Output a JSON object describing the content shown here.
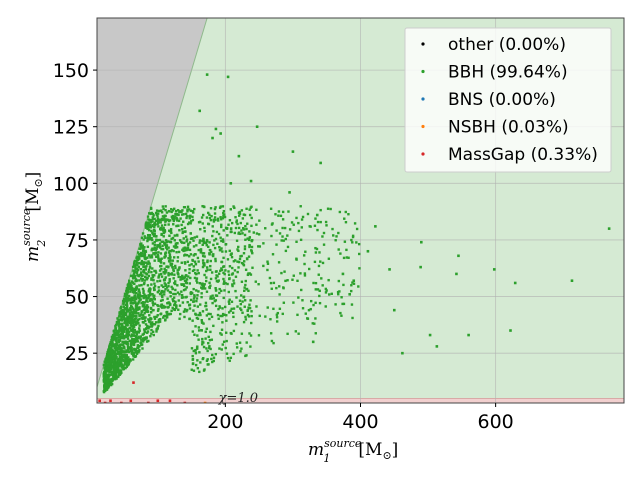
{
  "chart_data": {
    "type": "scatter",
    "title": "",
    "xlabel": "m_1^{source} [M_⊙]",
    "ylabel": "m_2^{source} [M_⊙]",
    "xlabel_parts": {
      "base": "m",
      "sub": "1",
      "sup": "source",
      "unit": "[M",
      "unit_sub": "⊙",
      "close": "]"
    },
    "ylabel_parts": {
      "base": "m",
      "sub": "2",
      "sup": "source",
      "unit": "[M",
      "unit_sub": "⊙",
      "close": "]"
    },
    "xlim": [
      10,
      790
    ],
    "ylim": [
      3,
      173
    ],
    "xticks": [
      200,
      400,
      600
    ],
    "yticks": [
      25,
      50,
      75,
      100,
      125,
      150
    ],
    "xtick_labels": [
      "200",
      "400",
      "600"
    ],
    "ytick_labels": [
      "25",
      "50",
      "75",
      "100",
      "125",
      "150"
    ],
    "grid": true,
    "legend_position": "top-right",
    "annotation": "χ=1.0",
    "regions": [
      {
        "name": "excluded-region",
        "color": "#c8c8c8",
        "description": "m2 > m1"
      },
      {
        "name": "bbh-region",
        "color": "#d5ead3"
      },
      {
        "name": "massgap-band",
        "color": "#f2d0cf"
      }
    ],
    "region_boundary_color": "#8fb98c",
    "series": [
      {
        "name": "other",
        "label": "other (0.00%)",
        "color": "#000000",
        "fraction": 0.0,
        "x": [],
        "y": []
      },
      {
        "name": "BBH",
        "label": "BBH (99.64%)",
        "color": "#2ca02c",
        "fraction": 99.64,
        "x": [
          173,
          204,
          162,
          186,
          181,
          193,
          247,
          220,
          238,
          208,
          300,
          341,
          295,
          336,
          422,
          490,
          489,
          411,
          443,
          545,
          598,
          629,
          713,
          768,
          542,
          390,
          450,
          513,
          384,
          374,
          503,
          622,
          330,
          560,
          462
        ],
        "y": [
          148,
          147,
          132,
          124,
          120,
          122,
          125,
          112,
          101,
          100,
          114,
          109,
          96,
          86,
          81,
          74,
          63,
          70,
          62,
          68,
          62,
          56,
          57,
          80,
          60,
          57,
          44,
          28,
          51,
          60,
          33,
          35,
          30,
          33,
          25
        ]
      },
      {
        "name": "BNS",
        "label": "BNS (0.00%)",
        "color": "#1f77b4",
        "fraction": 0.0,
        "x": [],
        "y": []
      },
      {
        "name": "NSBH",
        "label": "NSBH (0.03%)",
        "color": "#ff7f0e",
        "fraction": 0.03,
        "x": [
          170
        ],
        "y": [
          3
        ]
      },
      {
        "name": "MassGap",
        "label": "MassGap (0.33%)",
        "color": "#d62728",
        "fraction": 0.33,
        "x": [
          14,
          22,
          30,
          46,
          60,
          86,
          100,
          118,
          140,
          64
        ],
        "y": [
          4,
          3,
          4,
          3,
          4,
          3,
          4,
          4,
          3,
          12
        ]
      }
    ]
  }
}
